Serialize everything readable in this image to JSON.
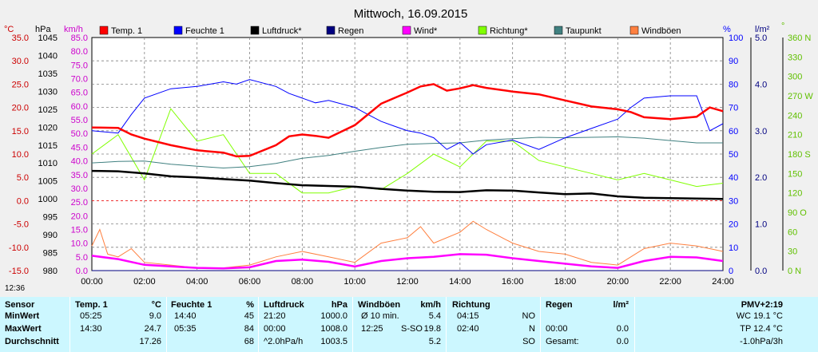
{
  "window_title": "Mittwoch, 16.09.2015",
  "time_label": "12:36",
  "legend": [
    {
      "label": "Temp. 1",
      "color": "#ff0000"
    },
    {
      "label": "Feuchte 1",
      "color": "#0000ff"
    },
    {
      "label": "Luftdruck*",
      "color": "#000000"
    },
    {
      "label": "Regen",
      "color": "#000080"
    },
    {
      "label": "Wind*",
      "color": "#ff00ff"
    },
    {
      "label": "Richtung*",
      "color": "#80ff00"
    },
    {
      "label": "Taupunkt",
      "color": "#408080"
    },
    {
      "label": "Windböen",
      "color": "#ff8040"
    }
  ],
  "axis_units": {
    "temp": "°C",
    "hpa": "hPa",
    "kmh": "km/h",
    "pct": "%",
    "rain": "l/m²",
    "deg": "°"
  },
  "axes": {
    "temp": [
      "35.0",
      "30.0",
      "25.0",
      "20.0",
      "15.0",
      "10.0",
      "5.0",
      "0.0",
      "-5.0",
      "-10.0",
      "-15.0"
    ],
    "hpa": [
      "1045",
      "1040",
      "1035",
      "1030",
      "1025",
      "1020",
      "1015",
      "1010",
      "1005",
      "1000",
      "995",
      "990",
      "985",
      "980"
    ],
    "kmh": [
      "85.0",
      "80.0",
      "75.0",
      "70.0",
      "65.0",
      "60.0",
      "55.0",
      "50.0",
      "45.0",
      "40.0",
      "35.0",
      "30.0",
      "25.0",
      "20.0",
      "15.0",
      "10.0",
      "5.0",
      "0.0"
    ],
    "pct": [
      "100",
      "90",
      "80",
      "70",
      "60",
      "50",
      "40",
      "30",
      "20",
      "10",
      "0"
    ],
    "rain": [
      "5.0",
      "4.0",
      "3.0",
      "2.0",
      "1.0",
      "0.0"
    ],
    "deg": [
      "360 N",
      "330",
      "300",
      "270 W",
      "240",
      "210",
      "180 S",
      "150",
      "120",
      "90 O",
      "60",
      "30",
      "0 N"
    ],
    "x": [
      "00:00",
      "02:00",
      "04:00",
      "06:00",
      "08:00",
      "10:00",
      "12:00",
      "14:00",
      "16:00",
      "18:00",
      "20:00",
      "22:00",
      "24:00"
    ]
  },
  "chart_data": {
    "type": "line",
    "title": "Mittwoch, 16.09.2015",
    "x_range_hours": [
      0,
      24
    ],
    "x_ticks": [
      "00:00",
      "02:00",
      "04:00",
      "06:00",
      "08:00",
      "10:00",
      "12:00",
      "14:00",
      "16:00",
      "18:00",
      "20:00",
      "22:00",
      "24:00"
    ],
    "series": [
      {
        "name": "Temp. 1",
        "unit": "°C",
        "color": "#ff0000",
        "x": [
          0,
          1,
          1.5,
          2,
          3,
          4,
          5,
          5.5,
          6,
          7,
          7.5,
          8,
          8.5,
          9,
          10,
          10.5,
          11,
          11.5,
          12,
          12.5,
          13,
          13.5,
          14,
          14.5,
          15,
          16,
          17,
          18,
          19,
          20,
          20.5,
          21,
          22,
          23,
          23.5,
          24
        ],
        "y": [
          15.7,
          15.6,
          14.2,
          13.3,
          11.9,
          10.8,
          10.3,
          9.5,
          9.6,
          11.9,
          13.8,
          14.2,
          13.9,
          13.5,
          16.2,
          18.5,
          20.8,
          22.0,
          23.2,
          24.5,
          25.0,
          23.6,
          24.1,
          24.8,
          24.2,
          23.4,
          22.8,
          21.5,
          20.2,
          19.6,
          19.0,
          17.9,
          17.5,
          18.0,
          20.0,
          19.2
        ]
      },
      {
        "name": "Feuchte 1",
        "unit": "%",
        "color": "#0000ff",
        "x": [
          0,
          1,
          1.5,
          2,
          3,
          4,
          5,
          5.5,
          6,
          7,
          7.5,
          8,
          8.5,
          9,
          10,
          10.5,
          11,
          11.5,
          12,
          12.5,
          13,
          13.5,
          14,
          14.5,
          15,
          16,
          17,
          18,
          19,
          20,
          20.5,
          21,
          22,
          23,
          23.5,
          24
        ],
        "y": [
          60,
          59,
          67,
          74,
          78,
          79,
          81,
          80,
          82,
          79,
          76,
          74,
          72,
          73,
          70,
          67,
          64,
          62,
          60,
          59,
          57,
          52,
          55,
          50,
          54,
          56,
          52,
          57,
          61,
          65,
          70,
          74,
          75,
          75,
          60,
          63
        ]
      },
      {
        "name": "Luftdruck*",
        "unit": "hPa",
        "color": "#000000",
        "x": [
          0,
          1,
          2,
          3,
          4,
          5,
          6,
          7,
          8,
          9,
          10,
          11,
          12,
          13,
          14,
          15,
          16,
          17,
          18,
          19,
          20,
          21,
          22,
          23,
          24
        ],
        "y": [
          1007.8,
          1007.7,
          1007.1,
          1006.3,
          1006,
          1005.5,
          1005.1,
          1004.4,
          1003.8,
          1003.6,
          1003.4,
          1002.8,
          1002.3,
          1002.0,
          1001.9,
          1002.4,
          1002.3,
          1001.8,
          1001.3,
          1001.5,
          1000.7,
          1000.3,
          1000.2,
          1000.1,
          1000.0
        ]
      },
      {
        "name": "Regen",
        "unit": "l/m²",
        "color": "#000080",
        "x": [
          0,
          24
        ],
        "y": [
          0.0,
          0.0
        ]
      },
      {
        "name": "Wind*",
        "unit": "km/h",
        "color": "#ff00ff",
        "x": [
          0,
          1,
          2,
          3,
          4,
          5,
          6,
          7,
          8,
          9,
          10,
          11,
          12,
          13,
          14,
          15,
          16,
          17,
          18,
          19,
          20,
          21,
          22,
          23,
          24
        ],
        "y": [
          5.4,
          4.2,
          2.1,
          1.5,
          1.0,
          0.8,
          1.2,
          3.5,
          4.0,
          3.2,
          1.5,
          3.5,
          4.5,
          5.0,
          6.0,
          5.8,
          4.5,
          3.5,
          2.5,
          1.5,
          1.0,
          3.5,
          5.0,
          4.8,
          3.5
        ]
      },
      {
        "name": "Richtung*",
        "unit": "°",
        "color": "#80ff00",
        "x": [
          0,
          1,
          2,
          3,
          4,
          5,
          6,
          7,
          8,
          9,
          10,
          11,
          12,
          13,
          14,
          15,
          16,
          17,
          18,
          19,
          20,
          21,
          22,
          23,
          24
        ],
        "y": [
          180,
          210,
          140,
          250,
          200,
          210,
          150,
          150,
          120,
          120,
          130,
          125,
          150,
          180,
          160,
          200,
          200,
          170,
          160,
          150,
          140,
          150,
          140,
          130,
          135
        ]
      },
      {
        "name": "Taupunkt",
        "unit": "°C",
        "color": "#408080",
        "x": [
          0,
          1,
          2,
          3,
          4,
          5,
          6,
          7,
          8,
          9,
          10,
          11,
          12,
          13,
          14,
          15,
          16,
          17,
          18,
          19,
          20,
          21,
          22,
          23,
          24
        ],
        "y": [
          8.1,
          8.4,
          8.5,
          7.8,
          7.4,
          7.0,
          7.3,
          8.0,
          9.1,
          9.7,
          10.6,
          11.4,
          12.1,
          12.3,
          12.4,
          13.0,
          13.3,
          13.6,
          13.5,
          13.6,
          13.7,
          13.4,
          12.9,
          12.4,
          12.4
        ]
      },
      {
        "name": "Windböen",
        "unit": "km/h",
        "color": "#ff8040",
        "x": [
          0,
          0.3,
          0.6,
          1,
          1.5,
          2,
          3,
          4,
          5,
          6,
          7,
          8,
          9,
          10,
          11,
          12,
          12.5,
          13,
          14,
          14.5,
          15,
          16,
          17,
          18,
          19,
          20,
          21,
          22,
          23,
          24
        ],
        "y": [
          9,
          15,
          6,
          5,
          8,
          3,
          2,
          1,
          1,
          2,
          5,
          7,
          5,
          3,
          10,
          12,
          16,
          10,
          14,
          18,
          15,
          10,
          7,
          6,
          3,
          2,
          8,
          10,
          9,
          7
        ]
      }
    ]
  },
  "stats": {
    "headers": {
      "sensor": "Sensor",
      "temp": "Temp. 1",
      "temp_unit": "°C",
      "hum": "Feuchte 1",
      "hum_unit": "%",
      "press": "Luftdruck",
      "press_unit": "hPa",
      "gust": "Windböen",
      "gust_unit": "km/h",
      "dir": "Richtung",
      "rain": "Regen",
      "rain_unit": "l/m²",
      "pmv": "PMV+2:19"
    },
    "rows": [
      {
        "label": "MinWert",
        "temp_time": "05:25",
        "temp_val": "9.0",
        "hum_time": "14:40",
        "hum_val": "45",
        "press_time": "21:20",
        "press_val": "1000.0",
        "gust_time": "Ø 10 min.",
        "gust_val": "5.4",
        "dir_time": "04:15",
        "dir_val": "NO",
        "rain_time": "",
        "rain_val": "",
        "extra": "WC 19.1 °C"
      },
      {
        "label": "MaxWert",
        "temp_time": "14:30",
        "temp_val": "24.7",
        "hum_time": "05:35",
        "hum_val": "84",
        "press_time": "00:00",
        "press_val": "1008.0",
        "gust_time": "12:25",
        "gust_dir": "S-SO",
        "gust_val": "19.8",
        "dir_time": "02:40",
        "dir_val": "N",
        "rain_time": "00:00",
        "rain_val": "0.0",
        "extra": "TP 12.4 °C"
      },
      {
        "label": "Durchschnitt",
        "temp_time": "",
        "temp_val": "17.26",
        "hum_time": "",
        "hum_val": "68",
        "press_time": "^2.0hPa/h",
        "press_val": "1003.5",
        "gust_time": "",
        "gust_val": "5.2",
        "dir_time": "",
        "dir_val": "SO",
        "rain_time": "Gesamt:",
        "rain_val": "0.0",
        "extra": "-1.0hPa/3h"
      }
    ]
  }
}
